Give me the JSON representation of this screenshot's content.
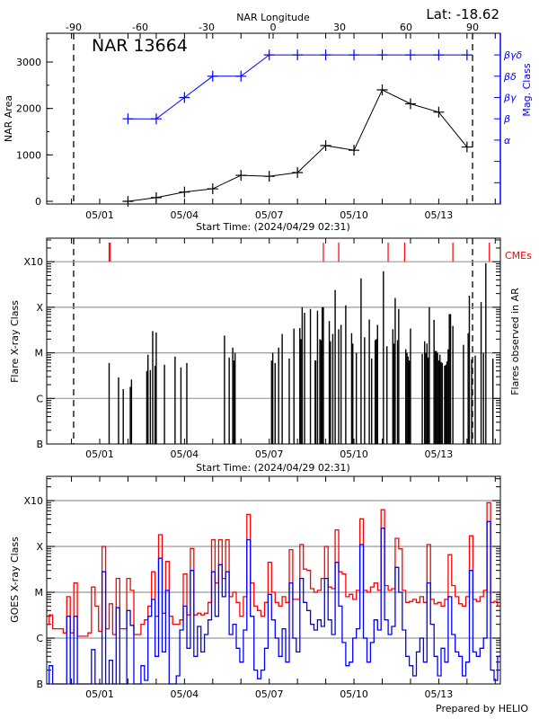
{
  "colors": {
    "area": "#000000",
    "mag_class": "#0000ff",
    "cme": "#ff0000",
    "goes_long": "#ff0000",
    "goes_short": "#0000ff",
    "grid": "#999999"
  },
  "footer": "Prepared by HELIO",
  "chart_data": [
    {
      "type": "line",
      "title": "NAR 13664",
      "annotation": "Lat: -18.62",
      "xlabel": "Start Time: (2024/04/29 02:31)",
      "xticks": [
        "05/01",
        "05/04",
        "05/07",
        "05/10",
        "05/13"
      ],
      "x2label": "NAR Longitude",
      "x2ticks": [
        "-90",
        "-60",
        "-30",
        "0",
        "30",
        "60",
        "90"
      ],
      "limb_longitudes": [
        -90,
        90
      ],
      "ylabel": "NAR Area",
      "yticks": [
        "0",
        "1000",
        "2000",
        "3000"
      ],
      "ylim": [
        -58,
        3620
      ],
      "y2label": "Mag. Class",
      "y2ticks": [
        "",
        "",
        "α",
        "β",
        "βγ",
        "βδ",
        "βγδ"
      ],
      "x": [
        "05/02 00:00",
        "05/03 00:00",
        "05/04 00:00",
        "05/05 00:00",
        "05/06 00:00",
        "05/07 00:00",
        "05/08 00:00",
        "05/09 00:00",
        "05/10 00:00",
        "05/11 00:00",
        "05/12 00:00",
        "05/13 00:00",
        "05/14 00:00"
      ],
      "area": [
        0,
        80,
        200,
        270,
        560,
        540,
        620,
        1200,
        1100,
        2400,
        2100,
        1920,
        1170
      ],
      "mag_class": [
        "β",
        "β",
        "βγ",
        "βδ",
        "βδ",
        "βγδ",
        "βγδ",
        "βγδ",
        "βγδ",
        "βγδ",
        "βγδ",
        "βγδ",
        "βγδ"
      ]
    },
    {
      "type": "bar",
      "xlabel": "Start Time: (2024/04/29 02:31)",
      "xticks": [
        "05/01",
        "05/04",
        "05/07",
        "05/10",
        "05/13"
      ],
      "ylabel": "Flare X-ray Class",
      "y2label": "Flares observed in AR",
      "yticks": [
        "B",
        "C",
        "M",
        "X",
        "X10"
      ],
      "cme_label": "CMEs",
      "cmes": [
        "05/01 08:00",
        "05/01 09:00",
        "05/08 22:00",
        "05/09 11:00",
        "05/11 05:00",
        "05/11 19:00",
        "05/13 12:00",
        "05/14 19:00"
      ],
      "flares": [
        [
          "05/01 08:00",
          "C6.0"
        ],
        [
          "05/01 16:00",
          "C2.9"
        ],
        [
          "05/01 20:00",
          "C1.6"
        ],
        [
          "05/02 02:00",
          "C1.8"
        ],
        [
          "05/02 03:00",
          "C2.6"
        ],
        [
          "05/02 16:00",
          "C4.0"
        ],
        [
          "05/02 17:00",
          "C9.1"
        ],
        [
          "05/02 19:00",
          "C4.2"
        ],
        [
          "05/02 21:00",
          "M3.0"
        ],
        [
          "05/02 23:00",
          "C5.2"
        ],
        [
          "05/03 00:00",
          "M2.8"
        ],
        [
          "05/03 07:00",
          "C5.5"
        ],
        [
          "05/03 16:00",
          "C8.3"
        ],
        [
          "05/03 21:00",
          "C4.8"
        ],
        [
          "05/04 02:00",
          "C6.0"
        ],
        [
          "05/05 10:00",
          "M2.4"
        ],
        [
          "05/05 14:00",
          "C7.9"
        ],
        [
          "05/05 17:00",
          "M1.3"
        ],
        [
          "05/05 18:00",
          "C6.8"
        ],
        [
          "05/05 19:00",
          "M1.0"
        ],
        [
          "05/07 02:00",
          "C6.8"
        ],
        [
          "05/07 03:00",
          "M1.0"
        ],
        [
          "05/07 05:00",
          "C6.0"
        ],
        [
          "05/07 08:00",
          "M1.3"
        ],
        [
          "05/07 11:00",
          "M2.6"
        ],
        [
          "05/07 17:00",
          "C7.5"
        ],
        [
          "05/07 21:00",
          "M3.4"
        ],
        [
          "05/08 02:00",
          "M3.5"
        ],
        [
          "05/08 03:00",
          "M2.0"
        ],
        [
          "05/08 04:00",
          "X1.0"
        ],
        [
          "05/08 06:00",
          "M7.6"
        ],
        [
          "05/08 11:00",
          "M9.2"
        ],
        [
          "05/08 15:00",
          "C6.8"
        ],
        [
          "05/08 15:30",
          "C6.8"
        ],
        [
          "05/08 17:00",
          "M8.4"
        ],
        [
          "05/08 19:00",
          "M2.0"
        ],
        [
          "05/08 20:00",
          "M1.9"
        ],
        [
          "05/08 21:00",
          "X1.0"
        ],
        [
          "05/08 22:00",
          "X1.0"
        ],
        [
          "05/09 03:00",
          "M5.0"
        ],
        [
          "05/09 04:00",
          "M1.8"
        ],
        [
          "05/09 06:00",
          "M2.6"
        ],
        [
          "05/09 08:00",
          "X2.4"
        ],
        [
          "05/09 11:00",
          "M3.3"
        ],
        [
          "05/09 13:00",
          "M4.1"
        ],
        [
          "05/09 17:00",
          "X1.1"
        ],
        [
          "05/09 22:00",
          "M2.7"
        ],
        [
          "05/09 23:00",
          "M1.6"
        ],
        [
          "05/10 02:00",
          "M1.0"
        ],
        [
          "05/10 06:00",
          "X4.3"
        ],
        [
          "05/10 09:00",
          "M2.2"
        ],
        [
          "05/10 13:00",
          "M5.4"
        ],
        [
          "05/10 15:00",
          "C7.5"
        ],
        [
          "05/10 18:00",
          "M1.9"
        ],
        [
          "05/10 19:00",
          "M2.0"
        ],
        [
          "05/10 19:30",
          "M2.0"
        ],
        [
          "05/10 20:00",
          "M4.1"
        ],
        [
          "05/11 01:00",
          "X6.2"
        ],
        [
          "05/11 04:00",
          "M1.4"
        ],
        [
          "05/11 09:00",
          "M3.3"
        ],
        [
          "05/11 10:00",
          "M1.6"
        ],
        [
          "05/11 11:00",
          "X1.6"
        ],
        [
          "05/11 13:00",
          "M1.9"
        ],
        [
          "05/11 14:00",
          "M9.2"
        ],
        [
          "05/11 20:00",
          "M1.2"
        ],
        [
          "05/11 21:00",
          "M1.0"
        ],
        [
          "05/11 22:00",
          "C8.3"
        ],
        [
          "05/11 23:00",
          "C6.8"
        ],
        [
          "05/12 00:00",
          "M3.4"
        ],
        [
          "05/12 10:00",
          "C9.5"
        ],
        [
          "05/12 12:00",
          "M1.8"
        ],
        [
          "05/12 13:00",
          "M1.0"
        ],
        [
          "05/12 14:00",
          "M1.6"
        ],
        [
          "05/12 15:00",
          "C7.9"
        ],
        [
          "05/12 16:00",
          "X1.0"
        ],
        [
          "05/12 20:00",
          "M5.3"
        ],
        [
          "05/12 21:00",
          "M1.1"
        ],
        [
          "05/12 22:00",
          "M1.1"
        ],
        [
          "05/12 23:00",
          "M1.0"
        ],
        [
          "05/13 00:00",
          "C6.8"
        ],
        [
          "05/13 01:00",
          "C9.1"
        ],
        [
          "05/13 02:00",
          "C6.3"
        ],
        [
          "05/13 03:00",
          "C6.0"
        ],
        [
          "05/13 05:00",
          "C5.2"
        ],
        [
          "05/13 06:00",
          "C5.5"
        ],
        [
          "05/13 07:00",
          "C6.5"
        ],
        [
          "05/13 08:00",
          "M1.2"
        ],
        [
          "05/13 09:00",
          "M7.1"
        ],
        [
          "05/13 10:00",
          "M7.1"
        ],
        [
          "05/13 12:00",
          "M3.9"
        ],
        [
          "05/13 21:00",
          "M1.5"
        ],
        [
          "05/14 01:00",
          "M2.7"
        ],
        [
          "05/14 02:00",
          "X1.8"
        ],
        [
          "05/14 04:00",
          "C7.2"
        ],
        [
          "05/14 07:00",
          "C8.7"
        ],
        [
          "05/14 12:00",
          "X1.3"
        ],
        [
          "05/14 14:00",
          "M1.0"
        ],
        [
          "05/14 16:00",
          "X9.3"
        ],
        [
          "05/14 22:00",
          "C7.5"
        ]
      ]
    },
    {
      "type": "line",
      "xticks": [
        "05/01",
        "05/04",
        "05/07",
        "05/10",
        "05/13"
      ],
      "ylabel": "GOES X-ray Class",
      "yticks": [
        "B",
        "C",
        "M",
        "X",
        "X10"
      ],
      "x_start": "04/28 23:00",
      "x_step_hours": 3,
      "long_channel": [
        2e-06,
        2e-06,
        3.2e-06,
        1.6e-06,
        1.6e-06,
        1.6e-06,
        1.3e-06,
        8e-06,
        1.3e-06,
        1.6e-05,
        1.1e-06,
        1.1e-06,
        1.1e-06,
        1.3e-06,
        1.3e-05,
        5e-06,
        1.4e-06,
        0.0001,
        1.6e-06,
        5.6e-06,
        1.2e-06,
        2e-05,
        1.6e-06,
        1.6e-06,
        2e-05,
        1.1e-05,
        1.2e-06,
        1.2e-06,
        2e-06,
        2.5e-06,
        5e-06,
        2.8e-05,
        3e-06,
        0.00018,
        3.5e-06,
        4.7e-05,
        3e-06,
        2e-06,
        2e-06,
        2.5e-06,
        2.5e-05,
        3.2e-06,
        9e-05,
        3.2e-06,
        3.5e-06,
        3.2e-06,
        3.5e-06,
        6e-06,
        0.00014,
        1.6e-05,
        0.00014,
        2e-05,
        0.00014,
        8e-06,
        1e-05,
        6e-06,
        3e-06,
        8e-06,
        0.0005,
        1.6e-05,
        5e-06,
        4e-06,
        3e-06,
        6e-06,
        4.5e-05,
        1e-05,
        6e-06,
        5e-06,
        8e-06,
        6e-06,
        8.5e-05,
        7e-06,
        7e-06,
        0.00011,
        3.2e-05,
        3e-05,
        1.2e-05,
        1e-05,
        1.1e-05,
        2e-05,
        0.0001,
        1.3e-05,
        1.2e-05,
        0.00023,
        2.8e-05,
        2.5e-05,
        8e-06,
        9e-06,
        7e-06,
        1.1e-05,
        0.0004,
        1.1e-05,
        1e-05,
        1.3e-05,
        1.6e-05,
        1.1e-05,
        0.00063,
        1.4e-05,
        1.1e-05,
        1.2e-05,
        0.00015,
        8.9e-05,
        1.1e-05,
        6e-06,
        6.3e-06,
        7e-06,
        6e-06,
        8e-06,
        6e-06,
        0.00011,
        7e-06,
        5.6e-06,
        6e-06,
        5e-06,
        7e-06,
        6.6e-05,
        1.4e-05,
        8e-06,
        5.6e-06,
        5e-06,
        8e-06,
        0.00017,
        7e-06,
        6.3e-06,
        8e-06,
        1.1e-05,
        0.0009,
        6e-06,
        6.3e-06,
        5e-06
      ],
      "short_channel": [
        1e-07,
        1e-07,
        2.5e-07,
        1e-07,
        1e-07,
        1e-07,
        1e-07,
        3e-06,
        1e-07,
        3e-06,
        1e-07,
        1e-07,
        1e-07,
        1e-07,
        5.6e-07,
        1e-07,
        1e-07,
        2.8e-05,
        1e-07,
        3.3e-07,
        1e-07,
        4.6e-06,
        1e-07,
        1e-07,
        4e-06,
        1.9e-06,
        1e-07,
        1e-07,
        2.5e-07,
        1.2e-07,
        3e-06,
        7e-06,
        4e-07,
        5.5e-05,
        5e-07,
        1.1e-05,
        1e-07,
        1e-07,
        1.5e-07,
        1.5e-06,
        5e-06,
        6e-07,
        3e-05,
        4e-07,
        1.8e-06,
        5e-07,
        1.2e-06,
        2.5e-06,
        2.8e-05,
        3e-06,
        4e-05,
        8e-06,
        2.8e-05,
        1.2e-06,
        2e-06,
        6e-07,
        3e-07,
        1.5e-06,
        0.00014,
        3e-06,
        2e-07,
        1.3e-07,
        2e-07,
        6e-07,
        9e-06,
        2.5e-06,
        1e-06,
        4e-07,
        1.6e-06,
        3e-07,
        1.6e-05,
        1e-06,
        5e-07,
        2e-05,
        6e-06,
        4e-06,
        2e-06,
        1.5e-06,
        2.5e-06,
        1.8e-06,
        2e-05,
        2.5e-06,
        1.2e-06,
        4.5e-05,
        5e-06,
        8e-07,
        2.5e-07,
        3e-07,
        1e-06,
        1.6e-06,
        0.00011,
        1e-06,
        3e-07,
        8e-07,
        2.5e-06,
        1.5e-06,
        0.00025,
        2.5e-06,
        1.2e-06,
        1.8e-06,
        3.5e-05,
        1e-05,
        1.5e-06,
        4e-07,
        2.5e-07,
        1.5e-07,
        5e-07,
        1e-06,
        3e-07,
        1.6e-05,
        2e-06,
        4e-07,
        1.5e-07,
        6e-07,
        3e-07,
        8e-06,
        1.2e-06,
        5e-07,
        4e-07,
        1.5e-07,
        3e-07,
        3e-05,
        5e-07,
        4e-07,
        6e-07,
        1e-06,
        0.00035,
        2e-07,
        1.2e-07,
        4e-07
      ]
    }
  ]
}
